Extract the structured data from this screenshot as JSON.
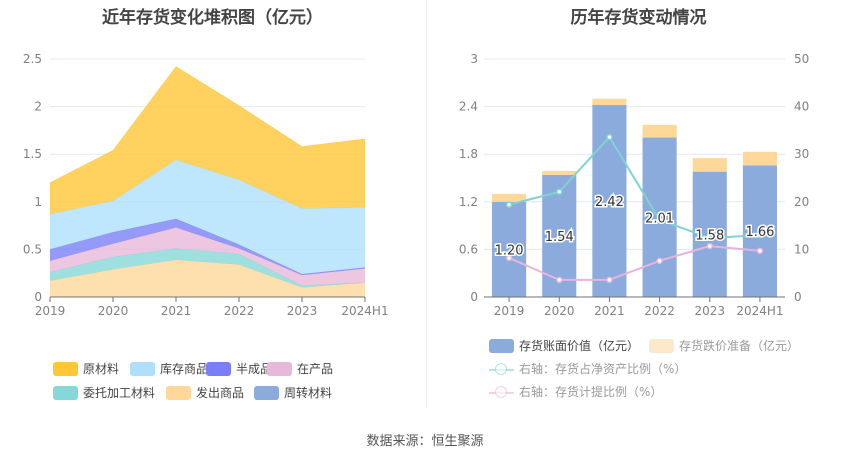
{
  "footer": {
    "source": "数据来源：恒生聚源"
  },
  "chart_data": [
    {
      "type": "area",
      "stacked": true,
      "title": "近年存货变化堆积图（亿元）",
      "categories": [
        "2019",
        "2020",
        "2021",
        "2022",
        "2023",
        "2024H1"
      ],
      "ylim": [
        0,
        2.5
      ],
      "yticks": [
        "0",
        "0.5",
        "1",
        "1.5",
        "2",
        "2.5"
      ],
      "grid": true,
      "legend_position": "bottom",
      "series": [
        {
          "name": "原材料",
          "color": "#ffc637",
          "values": [
            0.33,
            0.53,
            0.98,
            0.78,
            0.65,
            0.72
          ]
        },
        {
          "name": "库存商品",
          "color": "#aee0fb",
          "values": [
            0.37,
            0.33,
            0.62,
            0.68,
            0.69,
            0.63
          ]
        },
        {
          "name": "半成品",
          "color": "#7b7ff5",
          "values": [
            0.12,
            0.12,
            0.09,
            0.04,
            0.01,
            0.01
          ]
        },
        {
          "name": "在产品",
          "color": "#e8b8da",
          "values": [
            0.12,
            0.14,
            0.22,
            0.06,
            0.11,
            0.15
          ]
        },
        {
          "name": "委托加工材料",
          "color": "#86d7d8",
          "values": [
            0.09,
            0.13,
            0.12,
            0.11,
            0.02,
            0.0
          ]
        },
        {
          "name": "发出商品",
          "color": "#fdd898",
          "values": [
            0.17,
            0.29,
            0.39,
            0.34,
            0.1,
            0.15
          ]
        },
        {
          "name": "周转材料",
          "color": "#8aabdb",
          "values": [
            0,
            0,
            0,
            0,
            0,
            0
          ]
        }
      ],
      "stack_order_bottom_to_top": [
        "周转材料",
        "发出商品",
        "委托加工材料",
        "在产品",
        "半成品",
        "库存商品",
        "原材料"
      ]
    },
    {
      "type": "bar",
      "stacked": true,
      "title": "历年存货变动情况",
      "categories": [
        "2019",
        "2020",
        "2021",
        "2022",
        "2023",
        "2024H1"
      ],
      "ylim": [
        0,
        3
      ],
      "yticks": [
        "0",
        "0.6",
        "1.2",
        "1.8",
        "2.4",
        "3"
      ],
      "y2lim": [
        0,
        50
      ],
      "y2ticks": [
        "0",
        "10",
        "20",
        "30",
        "40",
        "50"
      ],
      "grid": true,
      "legend_position": "bottom",
      "series": [
        {
          "name": "存货账面价值（亿元）",
          "type": "bar",
          "color": "#8aabdb",
          "values": [
            1.2,
            1.54,
            2.42,
            2.01,
            1.58,
            1.66
          ],
          "labels": [
            "1.20",
            "1.54",
            "2.42",
            "2.01",
            "1.58",
            "1.66"
          ]
        },
        {
          "name": "存货跌价准备（亿元）",
          "type": "bar",
          "color": "#fdd898",
          "legend_color": "#fde9c9",
          "faded": true,
          "values": [
            0.1,
            0.05,
            0.08,
            0.16,
            0.17,
            0.17
          ]
        },
        {
          "name": "右轴：存货占净资产比例（%）",
          "type": "line",
          "axis": "right",
          "color": "#7fd3d2",
          "values": [
            19.4,
            22.1,
            33.6,
            16.2,
            12.4,
            13.0
          ]
        },
        {
          "name": "右轴：存货计提比例（%）",
          "type": "line",
          "axis": "right",
          "color": "#e8b4dc",
          "values": [
            8.2,
            3.6,
            3.6,
            7.6,
            10.7,
            9.7
          ]
        }
      ]
    }
  ]
}
